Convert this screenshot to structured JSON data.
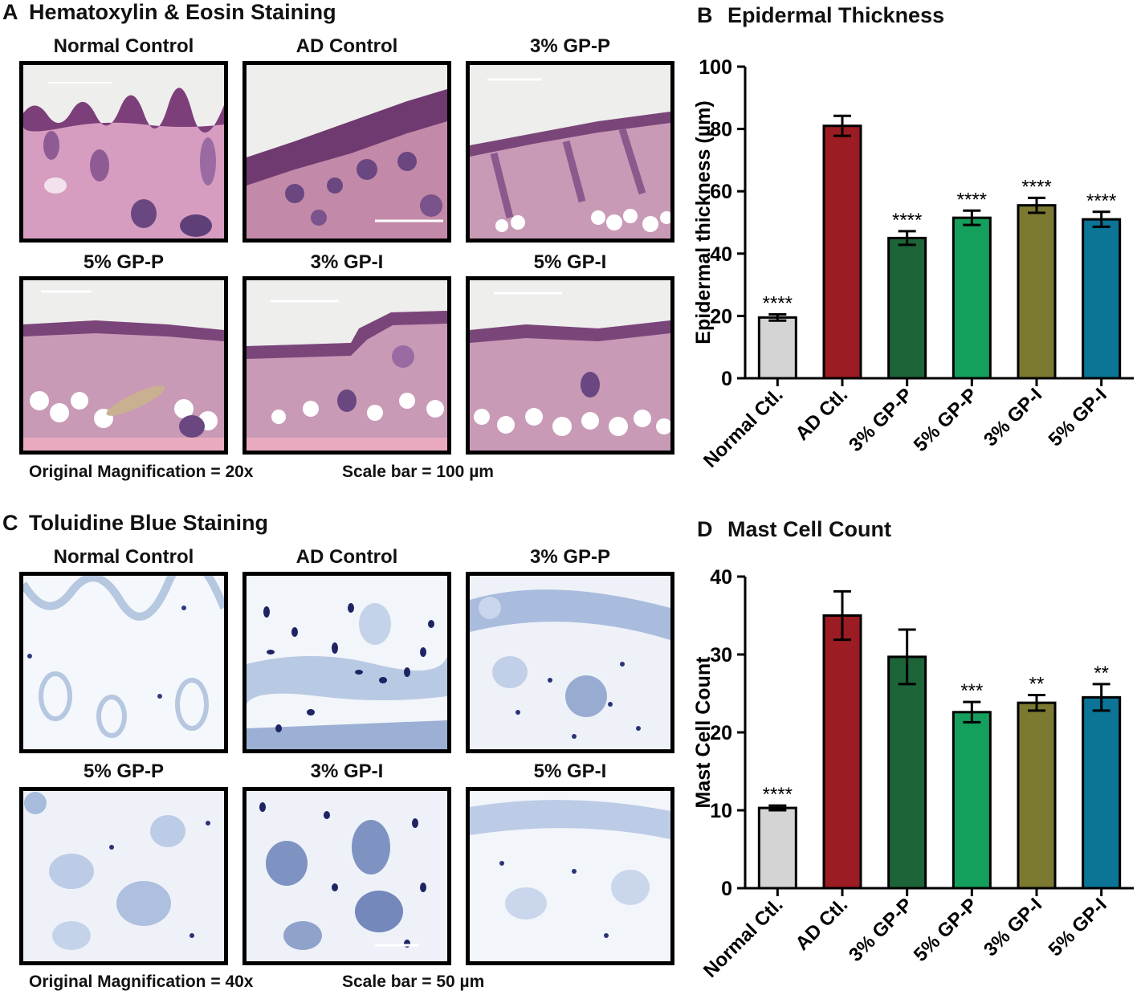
{
  "panel_a": {
    "letter": "A",
    "title": "Hematoxylin & Eosin Staining",
    "images": [
      {
        "label": "Normal Control"
      },
      {
        "label": "AD Control"
      },
      {
        "label": "3% GP-P"
      },
      {
        "label": "5% GP-P"
      },
      {
        "label": "3% GP-I"
      },
      {
        "label": "5% GP-I"
      }
    ],
    "magnification": "Original Magnification = 20x",
    "scale_bar": "Scale bar = 100 µm"
  },
  "panel_c": {
    "letter": "C",
    "title": "Toluidine Blue Staining",
    "images": [
      {
        "label": "Normal Control"
      },
      {
        "label": "AD Control"
      },
      {
        "label": "3% GP-P"
      },
      {
        "label": "5% GP-P"
      },
      {
        "label": "3% GP-I"
      },
      {
        "label": "5% GP-I"
      }
    ],
    "magnification": "Original Magnification = 40x",
    "scale_bar": "Scale bar = 50 µm"
  },
  "chart_data": [
    {
      "letter": "B",
      "type": "bar",
      "title": "Epidermal Thickness",
      "ylabel": "Epidermal thickness (µm)",
      "xlabel": "",
      "ylim": [
        0,
        100
      ],
      "yticks": [
        0,
        20,
        40,
        60,
        80,
        100
      ],
      "categories": [
        "Normal Ctl.",
        "AD Ctl.",
        "3% GP-P",
        "5% GP-P",
        "3% GP-I",
        "5% GP-I"
      ],
      "values": [
        19.5,
        81,
        45,
        51.5,
        55.5,
        51
      ],
      "errors": [
        1,
        3.2,
        2.2,
        2.3,
        2.4,
        2.4
      ],
      "significance": [
        "****",
        "",
        "****",
        "****",
        "****",
        "****"
      ],
      "colors": [
        "#d4d4d4",
        "#9b1c22",
        "#1d6438",
        "#14a05c",
        "#7c7a31",
        "#0b7497"
      ]
    },
    {
      "letter": "D",
      "type": "bar",
      "title": "Mast Cell Count",
      "ylabel": "Mast Cell Count",
      "xlabel": "",
      "ylim": [
        0,
        40
      ],
      "yticks": [
        0,
        10,
        20,
        30,
        40
      ],
      "categories": [
        "Normal Ctl.",
        "AD Ctl.",
        "3% GP-P",
        "5% GP-P",
        "3% GP-I",
        "5% GP-I"
      ],
      "values": [
        10.3,
        35,
        29.7,
        22.6,
        23.8,
        24.5
      ],
      "errors": [
        0.3,
        3.1,
        3.5,
        1.3,
        1.0,
        1.7
      ],
      "significance": [
        "****",
        "",
        "",
        "***",
        "**",
        "**"
      ],
      "colors": [
        "#d4d4d4",
        "#9b1c22",
        "#1d6438",
        "#14a05c",
        "#7c7a31",
        "#0b7497"
      ]
    }
  ]
}
